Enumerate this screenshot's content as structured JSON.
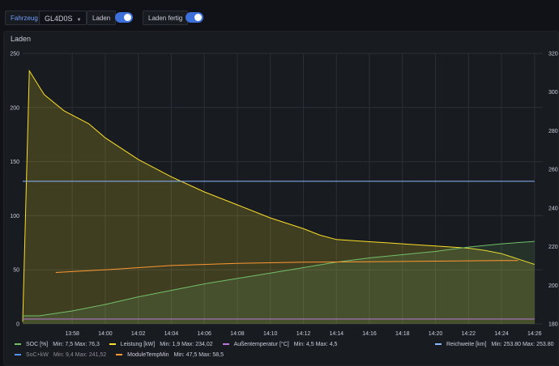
{
  "toolbar": {
    "vehicle_label": "Fahrzeug",
    "vehicle_value": "GL4D0S",
    "laden_label": "Laden",
    "laden_fertig_label": "Laden fertig"
  },
  "panel": {
    "title": "Laden"
  },
  "colors": {
    "soc": "#73bf69",
    "leistung": "#fade2a",
    "aussen": "#b877d9",
    "socxkw": "#5794f2",
    "moduletemp": "#ff9830",
    "reichweite": "#8ab8ff",
    "toggle_on": "#3d71d9",
    "accent": "#6e9fff"
  },
  "chart_data": {
    "type": "line",
    "title": "Laden",
    "x_ticks": [
      "13:58",
      "14:00",
      "14:02",
      "14:04",
      "14:06",
      "14:08",
      "14:10",
      "14:12",
      "14:14",
      "14:16",
      "14:18",
      "14:20",
      "14:22",
      "14:24",
      "14:26"
    ],
    "y_left": {
      "range": [
        0,
        250
      ],
      "ticks": [
        "0",
        "50",
        "100",
        "150",
        "200",
        "250"
      ]
    },
    "y_right": {
      "range": [
        180,
        320
      ],
      "ticks": [
        "180",
        "200",
        "220",
        "240",
        "260",
        "280",
        "300",
        "320"
      ]
    },
    "grid": true,
    "legend_placement": "bottom",
    "series": [
      {
        "name": "SOC [%]",
        "key": "soc",
        "axis": "left",
        "min": "Min: 7,5",
        "max": "Max: 76,3",
        "x": [
          "13:55",
          "13:56",
          "13:58",
          "14:00",
          "14:02",
          "14:04",
          "14:06",
          "14:08",
          "14:10",
          "14:12",
          "14:14",
          "14:16",
          "14:18",
          "14:20",
          "14:22",
          "14:24",
          "14:26"
        ],
        "values": [
          7.5,
          7.5,
          12,
          18,
          25,
          31,
          37,
          42,
          47,
          52,
          57,
          61,
          64,
          67,
          71,
          74,
          76.3
        ]
      },
      {
        "name": "Leistung [kW]",
        "key": "leistung",
        "axis": "left",
        "min": "Min: 1,9",
        "max": "Max: 234,02",
        "x": [
          "13:55",
          "13:55.4",
          "13:56.3",
          "13:57.5",
          "13:59",
          "14:00",
          "14:02",
          "14:04",
          "14:06",
          "14:08",
          "14:10",
          "14:12",
          "14:13",
          "14:14",
          "14:15",
          "14:16",
          "14:17",
          "14:18",
          "14:19",
          "14:20",
          "14:21",
          "14:22",
          "14:23",
          "14:24",
          "14:25",
          "14:26"
        ],
        "values": [
          1.9,
          234,
          212,
          197,
          185,
          172,
          152,
          136,
          122,
          110,
          98,
          88,
          82,
          78,
          77,
          76,
          75,
          74,
          73,
          72,
          71,
          70,
          68,
          65,
          60,
          55
        ]
      },
      {
        "name": "Außentemperatur [°C]",
        "key": "aussen",
        "axis": "left",
        "min": "Min: 4,5",
        "max": "Max: 4,5",
        "x": [
          "13:55",
          "14:26"
        ],
        "values": [
          4.5,
          4.5
        ]
      },
      {
        "name": "SoC+kW",
        "key": "socxkw",
        "axis": "left",
        "min": "Min: 9,4",
        "max": "Max: 241,52",
        "x": [],
        "values": []
      },
      {
        "name": "ModuleTempMin",
        "key": "moduletemp",
        "axis": "left",
        "min": "Min: 47,5",
        "max": "Max: 58,5",
        "x": [
          "13:57",
          "14:00",
          "14:04",
          "14:08",
          "14:12",
          "14:16",
          "14:20",
          "14:24",
          "14:25"
        ],
        "values": [
          47.5,
          50,
          54,
          56,
          57,
          57.5,
          58,
          58.5,
          58.5
        ]
      },
      {
        "name": "Reichweite [km]",
        "key": "reichweite",
        "axis": "right",
        "min": "Min: 253.80",
        "max": "Max: 253.80",
        "x": [
          "13:55",
          "14:26"
        ],
        "values": [
          253.8,
          253.8
        ]
      }
    ]
  }
}
